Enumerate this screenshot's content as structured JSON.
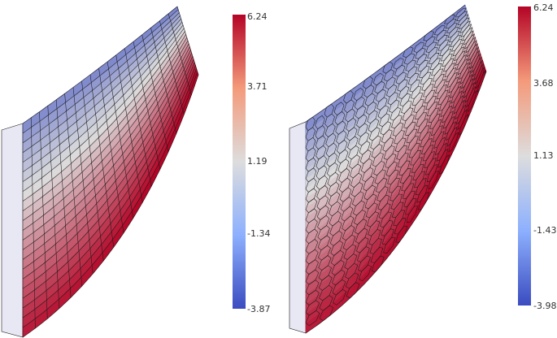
{
  "colors": {
    "low": "#3b4cc0",
    "mid": "#dddddd",
    "high": "#b40426",
    "mesh_line": "#1a1a1a",
    "side_face": "#e8e8f4"
  },
  "panels": [
    {
      "name": "structured-hex-mesh",
      "mesh_type": "structured",
      "colorbar": {
        "min": -3.87,
        "max": 6.24,
        "ticks": [
          "6.24",
          "3.71",
          "1.19",
          "-1.34",
          "-3.87"
        ]
      }
    },
    {
      "name": "polyhedral-mesh",
      "mesh_type": "polyhedral",
      "colorbar": {
        "min": -3.98,
        "max": 6.24,
        "ticks": [
          "6.24",
          "3.68",
          "1.13",
          "-1.43",
          "-3.98"
        ]
      }
    }
  ]
}
